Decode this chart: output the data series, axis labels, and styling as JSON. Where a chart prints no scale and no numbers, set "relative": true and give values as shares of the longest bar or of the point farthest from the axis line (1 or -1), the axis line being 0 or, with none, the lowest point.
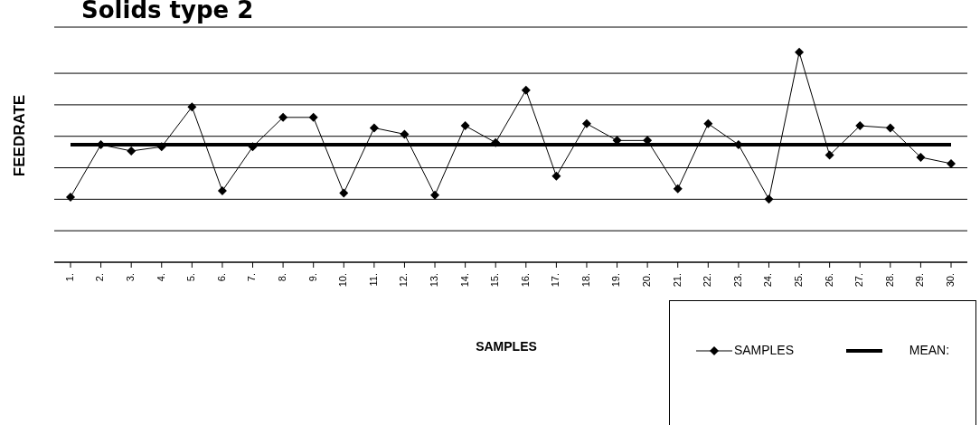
{
  "chart_data": {
    "type": "line",
    "title": "Solids type 2",
    "xlabel": "SAMPLES",
    "ylabel": "FEEDRATE",
    "relative": true,
    "grid": "y",
    "legend": "bottom right",
    "marker": "diamond",
    "categories": [
      "1.",
      "2.",
      "3.",
      "4.",
      "5.",
      "6.",
      "7.",
      "8.",
      "9.",
      "10.",
      "11.",
      "12.",
      "13.",
      "14.",
      "15.",
      "16.",
      "17.",
      "18.",
      "19.",
      "20.",
      "21.",
      "22.",
      "23.",
      "24.",
      "25.",
      "26.",
      "27.",
      "28.",
      "29.",
      "30."
    ],
    "series": [
      {
        "name": "SAMPLES",
        "color": "#000000",
        "values": [
          0.31,
          0.56,
          0.53,
          0.55,
          0.74,
          0.34,
          0.55,
          0.69,
          0.69,
          0.33,
          0.64,
          0.61,
          0.32,
          0.65,
          0.57,
          0.82,
          0.41,
          0.66,
          0.58,
          0.58,
          0.35,
          0.66,
          0.56,
          0.3,
          1,
          0.51,
          0.65,
          0.64,
          0.5,
          0.47
        ]
      },
      {
        "name": "MEAN:",
        "color": "#000000",
        "marker": "none",
        "values": [
          0.56,
          0.56,
          0.56,
          0.56,
          0.56,
          0.56,
          0.56,
          0.56,
          0.56,
          0.56,
          0.56,
          0.56,
          0.56,
          0.56,
          0.56,
          0.56,
          0.56,
          0.56,
          0.56,
          0.56,
          0.56,
          0.56,
          0.56,
          0.56,
          0.56,
          0.56,
          0.56,
          0.56,
          0.56,
          0.56
        ]
      }
    ]
  }
}
